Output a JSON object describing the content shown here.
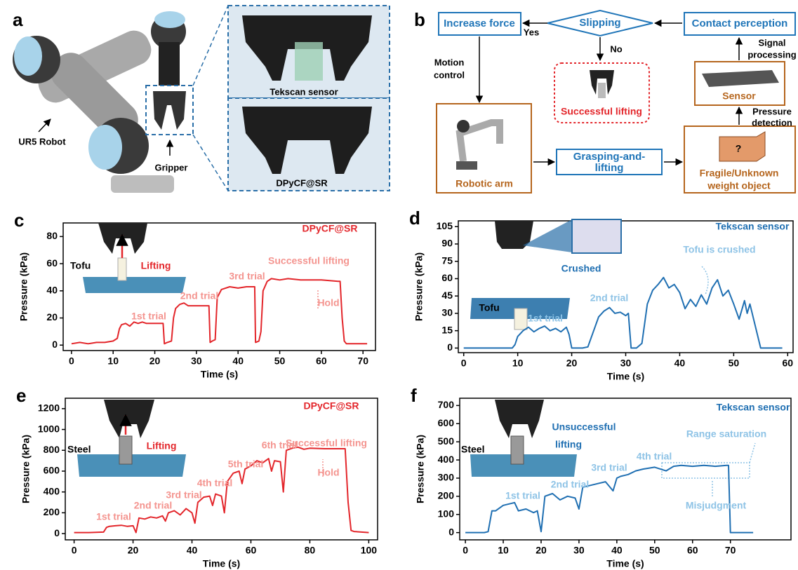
{
  "panel_a": {
    "letter": "a",
    "robot": "UR5 Robot",
    "gripper": "Gripper",
    "top_inset": "Tekscan sensor",
    "bottom_inset": "DPyCF@SR"
  },
  "panel_b": {
    "letter": "b",
    "increase_force": "Increase force",
    "slipping": "Slipping",
    "contact_perception": "Contact perception",
    "yes": "Yes",
    "no": "No",
    "successful_lifting": "Successful lifting",
    "motion_control": [
      "Motion",
      "control"
    ],
    "signal_processing": [
      "Signal",
      "processing"
    ],
    "pressure_detection": [
      "Pressure",
      "detection"
    ],
    "sensor": "Sensor",
    "robotic_arm": "Robotic arm",
    "grasping": [
      "Grasping-and-",
      "lifting"
    ],
    "question": "?",
    "object": [
      "Fragile/Unknown",
      "weight object"
    ]
  },
  "chart_data": [
    {
      "panel": "c",
      "type": "line",
      "title": "DPyCF@SR",
      "x_label": "Time (s)",
      "y_label": "Pressure (kPa)",
      "color": "#e3262b",
      "xlim": [
        -2,
        73
      ],
      "xticks": [
        0,
        10,
        20,
        30,
        40,
        50,
        60,
        70
      ],
      "ylim": [
        -4,
        90
      ],
      "yticks": [
        0,
        20,
        40,
        60,
        80
      ],
      "x": [
        0,
        2,
        4,
        6,
        8,
        10,
        11,
        11.5,
        12,
        13,
        14,
        15,
        16,
        17,
        18,
        20,
        22,
        22.3,
        23,
        24,
        24.5,
        25,
        26,
        27,
        28,
        30,
        32,
        33,
        33.3,
        33.8,
        34.5,
        35,
        36,
        38,
        40,
        42,
        44,
        44.2,
        45,
        45.5,
        46,
        47,
        48,
        50,
        52,
        55,
        60,
        64,
        64.5,
        65,
        65.5,
        66,
        68,
        71
      ],
      "values": [
        1,
        2,
        1,
        2,
        2,
        3,
        5,
        12,
        15,
        16,
        14,
        17,
        16,
        17,
        16,
        16,
        16,
        1,
        2,
        3,
        20,
        27,
        30,
        31,
        29,
        29,
        29,
        29,
        2,
        3,
        4,
        35,
        41,
        43,
        42,
        43,
        43,
        2,
        3,
        10,
        40,
        47,
        49,
        48,
        49,
        48,
        48,
        47,
        47,
        20,
        3,
        1,
        1,
        1
      ],
      "annotations": [
        "Tofu",
        "Lifting",
        "Successful lifting",
        "Hold",
        "1st trial",
        "2nd trial",
        "3rd trial"
      ]
    },
    {
      "panel": "d",
      "type": "line",
      "title": "Tekscan sensor",
      "x_label": "Time (s)",
      "y_label": "Pressure (kPa)",
      "color": "#1f6fb2",
      "xlim": [
        -1,
        61
      ],
      "xticks": [
        0,
        10,
        20,
        30,
        40,
        50,
        60
      ],
      "ylim": [
        -4,
        110
      ],
      "yticks": [
        0,
        15,
        30,
        45,
        60,
        75,
        90,
        105
      ],
      "x": [
        0,
        5,
        9,
        9.5,
        10,
        11,
        12,
        13,
        14,
        15,
        16,
        17,
        18,
        19,
        19.5,
        20,
        22,
        23,
        24,
        25,
        26,
        27,
        28,
        29,
        30,
        30.5,
        31,
        32,
        33,
        34,
        35,
        36,
        37,
        38,
        39,
        40,
        41,
        42,
        43,
        44,
        45,
        46,
        47,
        48,
        49,
        50,
        51,
        52,
        52.5,
        53,
        55,
        59
      ],
      "values": [
        0,
        0,
        0,
        3,
        10,
        15,
        18,
        14,
        17,
        19,
        15,
        17,
        14,
        18,
        12,
        0,
        0,
        1,
        14,
        27,
        32,
        35,
        30,
        31,
        28,
        30,
        0,
        0,
        4,
        38,
        50,
        55,
        61,
        52,
        55,
        48,
        34,
        42,
        36,
        46,
        38,
        52,
        59,
        45,
        50,
        38,
        25,
        41,
        30,
        38,
        0,
        0
      ],
      "annotations": [
        "Tofu",
        "Crushed",
        "Tofu is crushed",
        "1st trial",
        "2nd trial"
      ]
    },
    {
      "panel": "e",
      "type": "line",
      "title": "DPyCF@SR",
      "x_label": "Time (s)",
      "y_label": "Pressure (kPa)",
      "color": "#e3262b",
      "xlim": [
        -3,
        103
      ],
      "xticks": [
        0,
        20,
        40,
        60,
        80,
        100
      ],
      "ylim": [
        -60,
        1300
      ],
      "yticks": [
        0,
        200,
        400,
        600,
        800,
        1000,
        1200
      ],
      "x": [
        0,
        5,
        10,
        11,
        12,
        14,
        16,
        18,
        20,
        21,
        22,
        24,
        26,
        28,
        30,
        31,
        32,
        34,
        36,
        38,
        40,
        41,
        42,
        44,
        46,
        47,
        48,
        50,
        51,
        52,
        54,
        56,
        57,
        58,
        60,
        62,
        64,
        66,
        67,
        68,
        70,
        71,
        72,
        74,
        76,
        78,
        80,
        85,
        90,
        92,
        93,
        94,
        95,
        100
      ],
      "values": [
        10,
        10,
        15,
        60,
        70,
        75,
        80,
        70,
        75,
        10,
        150,
        140,
        160,
        150,
        170,
        120,
        200,
        220,
        180,
        240,
        200,
        100,
        300,
        350,
        360,
        270,
        380,
        360,
        200,
        500,
        580,
        600,
        480,
        620,
        650,
        700,
        680,
        720,
        600,
        700,
        690,
        400,
        800,
        820,
        830,
        810,
        820,
        815,
        815,
        815,
        300,
        30,
        20,
        10
      ],
      "annotations": [
        "Steel",
        "Lifting",
        "Successful lifting",
        "Hold",
        "1st trial",
        "2nd trial",
        "3rd trial",
        "4th trial",
        "5th trial",
        "6th trial"
      ]
    },
    {
      "panel": "f",
      "type": "line",
      "title": "Tekscan sensor",
      "x_label": "Time (s)",
      "y_label": "Pressure (kPa)",
      "color": "#1f6fb2",
      "xlim": [
        -1.5,
        86
      ],
      "xticks": [
        0,
        10,
        20,
        30,
        40,
        50,
        60,
        70
      ],
      "ylim": [
        -40,
        740
      ],
      "yticks": [
        0,
        100,
        200,
        300,
        400,
        500,
        600,
        700
      ],
      "x": [
        0,
        5,
        6,
        7,
        8,
        10,
        12,
        13,
        14,
        16,
        18,
        19,
        20,
        21,
        23,
        25,
        27,
        29,
        30,
        31,
        33,
        35,
        37,
        39,
        40,
        41,
        43,
        45,
        47,
        50,
        53,
        55,
        57,
        60,
        63,
        66,
        69,
        69.5,
        70,
        72,
        76
      ],
      "values": [
        0,
        0,
        5,
        120,
        120,
        150,
        160,
        165,
        120,
        130,
        110,
        120,
        5,
        200,
        215,
        180,
        200,
        190,
        130,
        250,
        260,
        270,
        280,
        230,
        300,
        310,
        320,
        340,
        350,
        360,
        340,
        365,
        370,
        365,
        370,
        365,
        370,
        370,
        0,
        0,
        0
      ],
      "annotations": [
        "Steel",
        "Unsuccessful",
        "lifting",
        "Range saturation",
        "Misjudgment",
        "1st trial",
        "2nd trial",
        "3rd trial",
        "4th trial"
      ]
    }
  ]
}
